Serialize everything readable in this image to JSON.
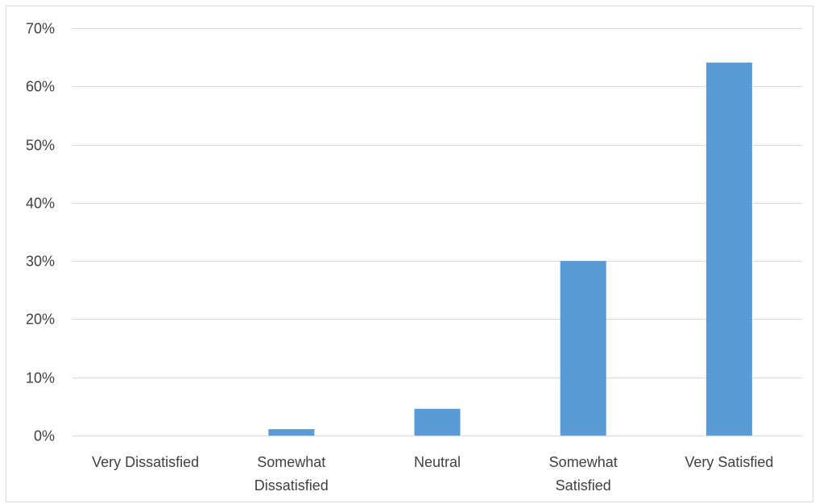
{
  "chart_data": {
    "type": "bar",
    "title": "",
    "xlabel": "",
    "ylabel": "",
    "categories": [
      "Very Dissatisfied",
      "Somewhat Dissatisfied",
      "Neutral",
      "Somewhat Satisfied",
      "Very Satisfied"
    ],
    "category_lines": [
      [
        "Very Dissatisfied"
      ],
      [
        "Somewhat",
        "Dissatisfied"
      ],
      [
        "Neutral"
      ],
      [
        "Somewhat",
        "Satisfied"
      ],
      [
        "Very Satisfied"
      ]
    ],
    "values": [
      0,
      0.011,
      0.046,
      0.3,
      0.641
    ],
    "ylim": [
      0,
      0.7
    ],
    "yticks": [
      0,
      0.1,
      0.2,
      0.3,
      0.4,
      0.5,
      0.6,
      0.7
    ],
    "ytick_labels": [
      "0%",
      "10%",
      "20%",
      "30%",
      "40%",
      "50%",
      "60%",
      "70%"
    ],
    "grid": true,
    "legend": "none",
    "bar_color": "#5b9bd5"
  }
}
